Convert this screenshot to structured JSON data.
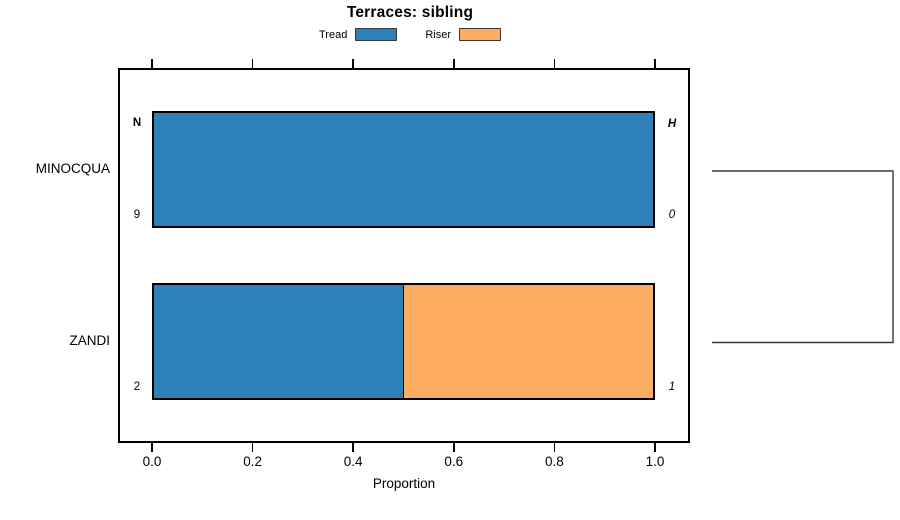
{
  "title": "Terraces: sibling",
  "legend": {
    "items": [
      {
        "label": "Tread",
        "color": "#2E81B8"
      },
      {
        "label": "Riser",
        "color": "#FCAD60"
      }
    ]
  },
  "chart_data": {
    "type": "bar",
    "orientation": "horizontal",
    "stacked": true,
    "title": "Terraces: sibling",
    "categories": [
      "MINOCQUA",
      "ZANDI"
    ],
    "series": [
      {
        "name": "Tread",
        "color": "#2E81B8",
        "values": [
          1.0,
          0.5
        ]
      },
      {
        "name": "Riser",
        "color": "#FCAD60",
        "values": [
          0.0,
          0.5
        ]
      }
    ],
    "xlabel": "Proportion",
    "xlim": [
      0,
      1
    ],
    "xticks": [
      "0.0",
      "0.2",
      "0.4",
      "0.6",
      "0.8",
      "1.0"
    ],
    "grid": false,
    "legend_position": "top",
    "annotations": {
      "left_header": "N",
      "right_header": "H",
      "rows": [
        {
          "category": "MINOCQUA",
          "n": "9",
          "h": "0"
        },
        {
          "category": "ZANDI",
          "n": "2",
          "h": "1"
        }
      ]
    },
    "dendrogram": {
      "description": "right-side bracket joining MINOCQUA and ZANDI rows"
    }
  },
  "colors": {
    "bar_border": "#000000",
    "axis": "#000000",
    "dendrogram_line": "#3a3a3a"
  }
}
